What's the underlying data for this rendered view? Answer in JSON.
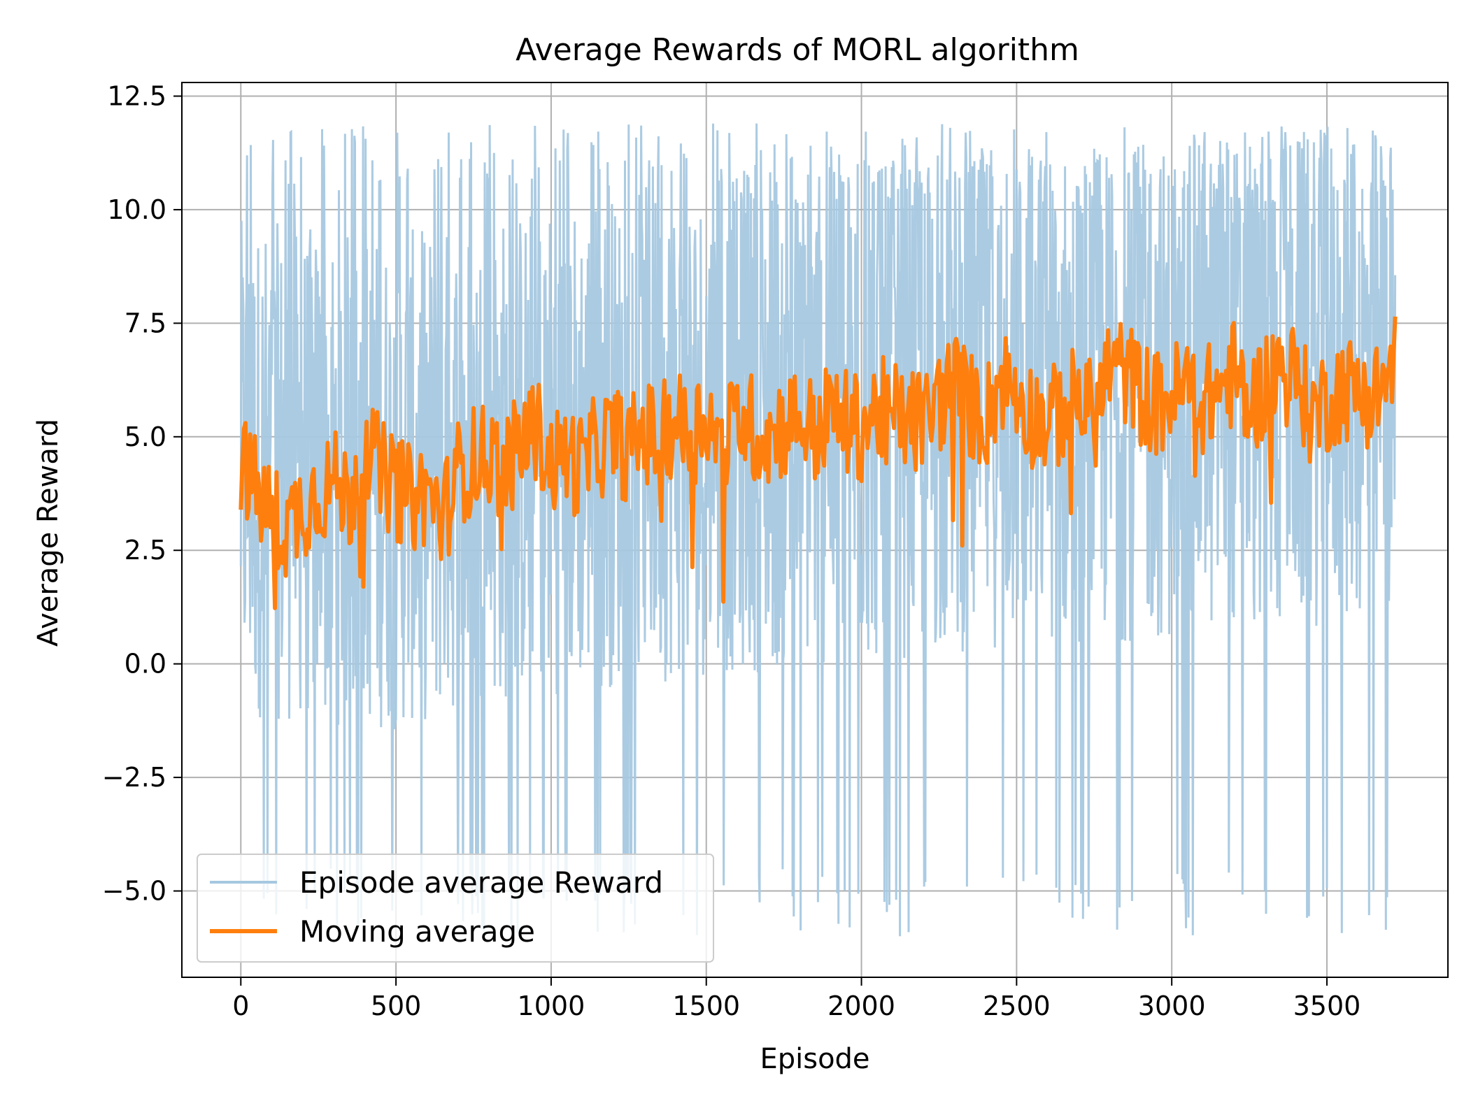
{
  "chart_data": {
    "type": "line",
    "title": "Average Rewards of MORL algorithm",
    "xlabel": "Episode",
    "ylabel": "Average Reward",
    "xlim": [
      -190,
      3890
    ],
    "ylim": [
      -6.9,
      12.8
    ],
    "xticks": [
      0,
      500,
      1000,
      1500,
      2000,
      2500,
      3000,
      3500
    ],
    "xtick_labels": [
      "0",
      "500",
      "1000",
      "1500",
      "2000",
      "2500",
      "3000",
      "3500"
    ],
    "yticks": [
      -5.0,
      -2.5,
      0.0,
      2.5,
      5.0,
      7.5,
      10.0,
      12.5
    ],
    "ytick_labels": [
      "−5.0",
      "−2.5",
      "0.0",
      "2.5",
      "5.0",
      "7.5",
      "10.0",
      "12.5"
    ],
    "grid": true,
    "legend_position": "lower-left",
    "series": [
      {
        "name": "Episode average Reward",
        "color": "#a6c8e0",
        "episodes": [
          0,
          3720
        ],
        "approx_range": [
          -6.0,
          11.9
        ],
        "trend_mean": [
          [
            0,
            4.3
          ],
          [
            500,
            4.0
          ],
          [
            1000,
            4.8
          ],
          [
            1500,
            5.2
          ],
          [
            2000,
            5.4
          ],
          [
            2500,
            5.9
          ],
          [
            3000,
            6.0
          ],
          [
            3500,
            6.3
          ],
          [
            3720,
            6.5
          ]
        ]
      },
      {
        "name": "Moving average",
        "color": "#ff7f0e",
        "x": [
          0,
          50,
          100,
          150,
          200,
          250,
          300,
          350,
          400,
          450,
          500,
          550,
          600,
          650,
          700,
          750,
          800,
          850,
          900,
          950,
          1000,
          1050,
          1100,
          1150,
          1200,
          1250,
          1300,
          1350,
          1400,
          1450,
          1500,
          1550,
          1600,
          1650,
          1700,
          1750,
          1800,
          1850,
          1900,
          1950,
          2000,
          2050,
          2100,
          2150,
          2200,
          2250,
          2300,
          2350,
          2400,
          2450,
          2500,
          2550,
          2600,
          2650,
          2700,
          2750,
          2800,
          2850,
          2900,
          2950,
          3000,
          3050,
          3100,
          3150,
          3200,
          3250,
          3300,
          3350,
          3400,
          3450,
          3500,
          3550,
          3600,
          3650,
          3700,
          3720
        ],
        "y": [
          4.5,
          3.8,
          3.2,
          3.0,
          3.5,
          3.8,
          4.0,
          3.6,
          5.0,
          4.2,
          3.9,
          3.6,
          3.8,
          3.2,
          4.2,
          4.5,
          4.6,
          4.3,
          4.8,
          5.2,
          4.4,
          4.6,
          4.3,
          4.8,
          5.0,
          4.7,
          5.1,
          4.9,
          5.4,
          5.0,
          5.6,
          4.6,
          5.5,
          5.2,
          5.0,
          5.3,
          5.4,
          5.1,
          5.5,
          5.3,
          5.2,
          5.6,
          5.5,
          5.4,
          5.3,
          5.8,
          6.2,
          5.7,
          5.4,
          6.3,
          6.0,
          5.5,
          5.3,
          5.6,
          5.9,
          5.4,
          6.6,
          6.4,
          6.0,
          5.7,
          5.9,
          6.1,
          5.8,
          6.0,
          6.4,
          5.6,
          6.2,
          6.5,
          6.3,
          5.5,
          5.8,
          6.1,
          6.0,
          5.9,
          6.3,
          6.7
        ]
      }
    ]
  }
}
